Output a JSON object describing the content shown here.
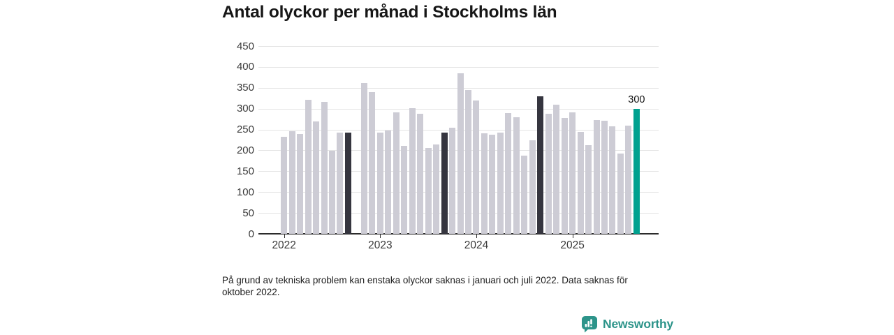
{
  "title": "Antal olyckor per månad i Stockholms län",
  "footnote": "På grund av tekniska problem kan enstaka olyckor saknas i januari och juli 2022. Data saknas för oktober 2022.",
  "logo": {
    "text": "Newsworthy",
    "icon": "newsworthy-bar-chart-bubble-icon",
    "color": "#2d948a"
  },
  "annotation": {
    "label": "300",
    "month": "2025-09"
  },
  "colors": {
    "bar_default": "#cdccd5",
    "bar_highlight": "#35353f",
    "bar_latest": "#00a18f",
    "axis": "#2b2b2b",
    "gridline": "#e4e4e4",
    "title_text": "#161616",
    "logo_teal": "#2d948a"
  },
  "chart_data": {
    "type": "bar",
    "title": "Antal olyckor per månad i Stockholms län",
    "xlabel": "",
    "ylabel": "",
    "ylim": [
      0,
      450
    ],
    "y_ticks": [
      0,
      50,
      100,
      150,
      200,
      250,
      300,
      350,
      400,
      450
    ],
    "x_tick_labels": [
      "2022",
      "2023",
      "2024",
      "2025"
    ],
    "grid": true,
    "legend_position": "none",
    "series": [
      {
        "name": "Antal olyckor",
        "points": [
          {
            "month": "2022-01",
            "value": 232,
            "emphasis": "default"
          },
          {
            "month": "2022-02",
            "value": 246,
            "emphasis": "default"
          },
          {
            "month": "2022-03",
            "value": 239,
            "emphasis": "default"
          },
          {
            "month": "2022-04",
            "value": 321,
            "emphasis": "default"
          },
          {
            "month": "2022-05",
            "value": 269,
            "emphasis": "default"
          },
          {
            "month": "2022-06",
            "value": 317,
            "emphasis": "default"
          },
          {
            "month": "2022-07",
            "value": 199,
            "emphasis": "default"
          },
          {
            "month": "2022-08",
            "value": 243,
            "emphasis": "default"
          },
          {
            "month": "2022-09",
            "value": 242,
            "emphasis": "dark"
          },
          {
            "month": "2022-11",
            "value": 361,
            "emphasis": "default"
          },
          {
            "month": "2022-12",
            "value": 340,
            "emphasis": "default"
          },
          {
            "month": "2023-01",
            "value": 242,
            "emphasis": "default"
          },
          {
            "month": "2023-02",
            "value": 248,
            "emphasis": "default"
          },
          {
            "month": "2023-03",
            "value": 291,
            "emphasis": "default"
          },
          {
            "month": "2023-04",
            "value": 211,
            "emphasis": "default"
          },
          {
            "month": "2023-05",
            "value": 301,
            "emphasis": "default"
          },
          {
            "month": "2023-06",
            "value": 287,
            "emphasis": "default"
          },
          {
            "month": "2023-07",
            "value": 205,
            "emphasis": "default"
          },
          {
            "month": "2023-08",
            "value": 214,
            "emphasis": "default"
          },
          {
            "month": "2023-09",
            "value": 242,
            "emphasis": "dark"
          },
          {
            "month": "2023-10",
            "value": 255,
            "emphasis": "default"
          },
          {
            "month": "2023-11",
            "value": 385,
            "emphasis": "default"
          },
          {
            "month": "2023-12",
            "value": 345,
            "emphasis": "default"
          },
          {
            "month": "2024-01",
            "value": 320,
            "emphasis": "default"
          },
          {
            "month": "2024-02",
            "value": 241,
            "emphasis": "default"
          },
          {
            "month": "2024-03",
            "value": 237,
            "emphasis": "default"
          },
          {
            "month": "2024-04",
            "value": 243,
            "emphasis": "default"
          },
          {
            "month": "2024-05",
            "value": 290,
            "emphasis": "default"
          },
          {
            "month": "2024-06",
            "value": 279,
            "emphasis": "default"
          },
          {
            "month": "2024-07",
            "value": 188,
            "emphasis": "default"
          },
          {
            "month": "2024-08",
            "value": 225,
            "emphasis": "default"
          },
          {
            "month": "2024-09",
            "value": 330,
            "emphasis": "dark"
          },
          {
            "month": "2024-10",
            "value": 287,
            "emphasis": "default"
          },
          {
            "month": "2024-11",
            "value": 310,
            "emphasis": "default"
          },
          {
            "month": "2024-12",
            "value": 277,
            "emphasis": "default"
          },
          {
            "month": "2025-01",
            "value": 291,
            "emphasis": "default"
          },
          {
            "month": "2025-02",
            "value": 244,
            "emphasis": "default"
          },
          {
            "month": "2025-03",
            "value": 213,
            "emphasis": "default"
          },
          {
            "month": "2025-04",
            "value": 272,
            "emphasis": "default"
          },
          {
            "month": "2025-05",
            "value": 271,
            "emphasis": "default"
          },
          {
            "month": "2025-06",
            "value": 258,
            "emphasis": "default"
          },
          {
            "month": "2025-07",
            "value": 193,
            "emphasis": "default"
          },
          {
            "month": "2025-08",
            "value": 259,
            "emphasis": "default"
          },
          {
            "month": "2025-09",
            "value": 300,
            "emphasis": "latest"
          }
        ]
      }
    ]
  }
}
